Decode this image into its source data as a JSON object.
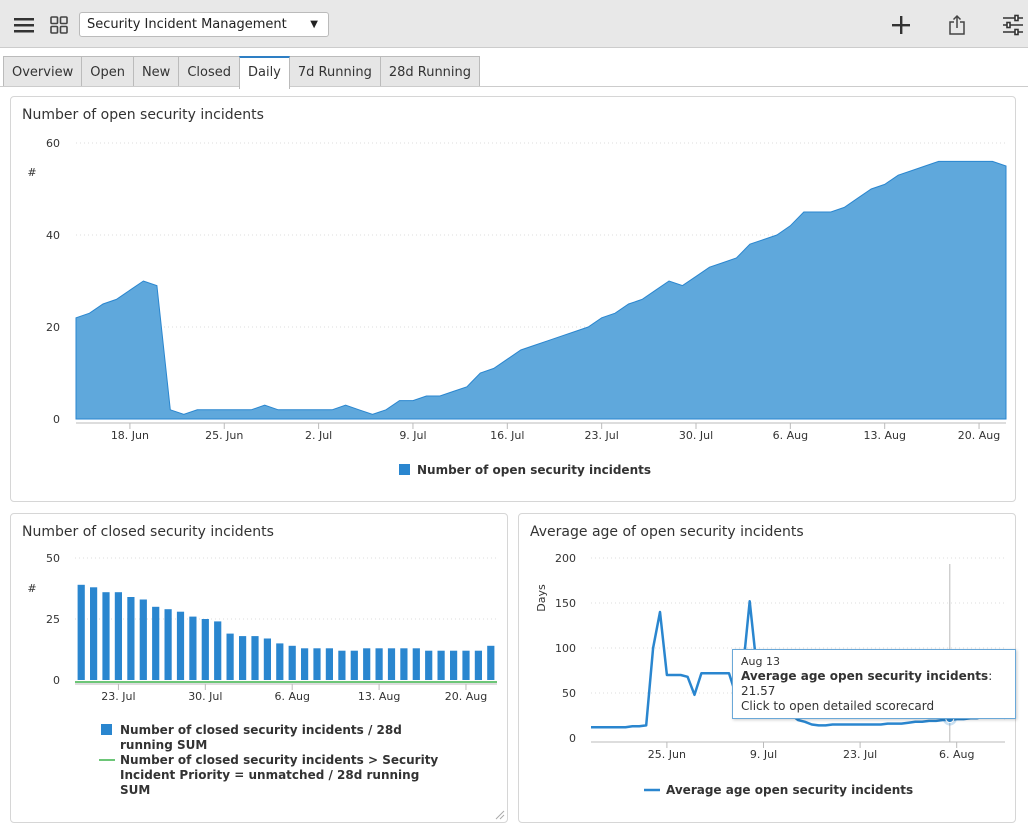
{
  "topbar": {
    "menu_icon": "hamburger-menu-icon",
    "grid_icon": "grid-view-icon",
    "dashboard_select": "Security Incident Management",
    "add_icon": "plus-icon",
    "share_icon": "share-export-icon",
    "filter_icon": "sliders-icon"
  },
  "tabs": [
    {
      "label": "Overview",
      "active": false
    },
    {
      "label": "Open",
      "active": false
    },
    {
      "label": "New",
      "active": false
    },
    {
      "label": "Closed",
      "active": false
    },
    {
      "label": "Daily",
      "active": true
    },
    {
      "label": "7d Running",
      "active": false
    },
    {
      "label": "28d Running",
      "active": false
    }
  ],
  "colors": {
    "area": "#5fa8dc",
    "area_stroke": "#2a86cf",
    "bar": "#2a86cf",
    "green": "#3cb34a",
    "line": "#2a86cf"
  },
  "panels": {
    "open": {
      "title": "Number of open security incidents",
      "ylabel": "#",
      "legend": "Number of open security incidents"
    },
    "closed": {
      "title": "Number of closed security incidents",
      "ylabel": "#",
      "legend1": "Number of closed security incidents / 28d running SUM",
      "legend2": "Number of closed security incidents > Security Incident Priority = unmatched / 28d running SUM"
    },
    "age": {
      "title": "Average age of open security incidents",
      "ylabel": "Days",
      "legend": "Average age open security incidents"
    }
  },
  "tooltip": {
    "date": "Aug 13",
    "label": "Average age open security incidents",
    "value": ": 21.57",
    "hint": "Click to open detailed scorecard"
  },
  "chart_data": [
    {
      "type": "area",
      "title": "Number of open security incidents",
      "ylabel": "#",
      "ylim": [
        0,
        60
      ],
      "yticks": [
        0,
        20,
        40,
        60
      ],
      "x_start": "2018-06-14",
      "xticks": [
        "18. Jun",
        "25. Jun",
        "2. Jul",
        "9. Jul",
        "16. Jul",
        "23. Jul",
        "30. Jul",
        "6. Aug",
        "13. Aug",
        "20. Aug"
      ],
      "series": [
        {
          "name": "Number of open security incidents",
          "values": [
            22,
            23,
            25,
            26,
            28,
            30,
            29,
            2,
            1,
            2,
            2,
            2,
            2,
            2,
            3,
            2,
            2,
            2,
            2,
            2,
            3,
            2,
            1,
            2,
            4,
            4,
            5,
            5,
            6,
            7,
            10,
            11,
            13,
            15,
            16,
            17,
            18,
            19,
            20,
            22,
            23,
            25,
            26,
            28,
            30,
            29,
            31,
            33,
            34,
            35,
            38,
            39,
            40,
            42,
            45,
            45,
            45,
            46,
            48,
            50,
            51,
            53,
            54,
            55,
            56,
            56,
            56,
            56,
            56,
            55
          ]
        }
      ],
      "legend": "bottom-center",
      "grid": true
    },
    {
      "type": "bar",
      "title": "Number of closed security incidents",
      "ylabel": "#",
      "ylim": [
        0,
        50
      ],
      "yticks": [
        0,
        25,
        50
      ],
      "xticks": [
        "23. Jul",
        "30. Jul",
        "6. Aug",
        "13. Aug",
        "20. Aug"
      ],
      "series": [
        {
          "name": "Number of closed security incidents / 28d running SUM",
          "values": [
            39,
            38,
            36,
            36,
            34,
            33,
            30,
            29,
            28,
            26,
            25,
            24,
            19,
            18,
            18,
            17,
            15,
            14,
            13,
            13,
            13,
            12,
            12,
            13,
            13,
            13,
            13,
            13,
            12,
            12,
            12,
            12,
            12,
            14
          ]
        },
        {
          "name": "Number of closed security incidents > Security Incident Priority = unmatched / 28d running SUM",
          "values": [
            0,
            0,
            0,
            0,
            0,
            0,
            0,
            0,
            0,
            0,
            0,
            0,
            0,
            0,
            0,
            0,
            0,
            0,
            0,
            0,
            0,
            0,
            0,
            0,
            0,
            0,
            0,
            0,
            0,
            0,
            0,
            0,
            0,
            0
          ]
        }
      ],
      "legend": "bottom",
      "grid": true
    },
    {
      "type": "line",
      "title": "Average age of open security incidents",
      "ylabel": "Days",
      "ylim": [
        0,
        200
      ],
      "yticks": [
        0,
        50,
        100,
        150,
        200
      ],
      "xticks": [
        "25. Jun",
        "9. Jul",
        "23. Jul",
        "6. Aug",
        "20. Aug"
      ],
      "series": [
        {
          "name": "Average age open security incidents",
          "values": [
            12,
            12,
            12,
            12,
            12,
            12,
            13,
            13,
            14,
            100,
            140,
            70,
            70,
            70,
            68,
            48,
            72,
            72,
            72,
            72,
            72,
            48,
            75,
            152,
            80,
            48,
            40,
            30,
            30,
            26,
            20,
            18,
            15,
            14,
            14,
            15,
            15,
            15,
            15,
            15,
            15,
            15,
            15,
            16,
            16,
            16,
            17,
            18,
            18,
            19,
            19,
            20,
            20,
            21,
            21,
            22,
            22,
            24,
            25,
            26,
            22
          ]
        }
      ],
      "highlight": {
        "label": "Aug 13",
        "value": 21.57
      },
      "legend": "bottom-center",
      "grid": true
    }
  ]
}
